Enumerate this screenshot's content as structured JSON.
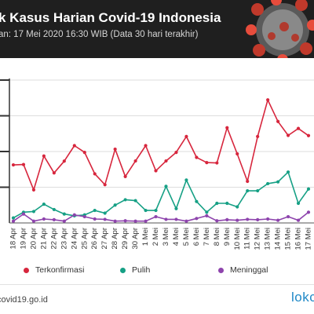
{
  "header": {
    "title": "k Kasus Harian Covid-19 Indonesia",
    "subtitle": "an: 17 Mei 2020 16:30 WIB (Data 30 hari terakhir)"
  },
  "footer": {
    "source": "covid19.go.id",
    "brand": "lokc"
  },
  "colors": {
    "confirmed": "#d7263d",
    "recovered": "#16a085",
    "deaths": "#8e44ad",
    "header_bg": "#1f1f1f"
  },
  "icons": {
    "header_art": "coronavirus-icon"
  },
  "chart_data": {
    "type": "line",
    "title": "",
    "xlabel": "",
    "ylabel": "",
    "ylim": [
      0,
      800
    ],
    "grid": true,
    "legend_position": "bottom",
    "categories": [
      "18 Apr",
      "19 Apr",
      "20 Apr",
      "21 Apr",
      "22 Apr",
      "23 Apr",
      "24 Apr",
      "25 Apr",
      "26 Apr",
      "27 Apr",
      "28 Apr",
      "29 Apr",
      "30 Apr",
      "1 Mei",
      "2 Mei",
      "3 Mei",
      "4 Mei",
      "5 Mei",
      "6 Mei",
      "7 Mei",
      "8 Mei",
      "9 Mei",
      "10 Mei",
      "11 Mei",
      "12 Mei",
      "13 Mei",
      "14 Mei",
      "15 Mei",
      "16 Mei",
      "17 Mei"
    ],
    "series": [
      {
        "name": "Terkonfirmasi",
        "key": "confirmed",
        "values": [
          325,
          327,
          185,
          375,
          280,
          346,
          433,
          395,
          275,
          214,
          413,
          260,
          347,
          433,
          292,
          347,
          395,
          484,
          367,
          338,
          336,
          533,
          387,
          233,
          484,
          689,
          568,
          490,
          529,
          489
        ]
      },
      {
        "name": "Pulih",
        "key": "recovered",
        "values": [
          28,
          60,
          64,
          105,
          75,
          50,
          40,
          45,
          70,
          55,
          100,
          130,
          125,
          70,
          70,
          205,
          80,
          240,
          120,
          60,
          110,
          110,
          90,
          180,
          180,
          220,
          230,
          285,
          110,
          190
        ]
      },
      {
        "name": "Meninggal",
        "key": "deaths",
        "values": [
          10,
          50,
          10,
          22,
          18,
          10,
          45,
          35,
          22,
          20,
          10,
          12,
          10,
          10,
          35,
          20,
          20,
          10,
          25,
          40,
          12,
          18,
          15,
          20,
          18,
          22,
          15,
          35,
          15,
          60
        ]
      }
    ]
  }
}
